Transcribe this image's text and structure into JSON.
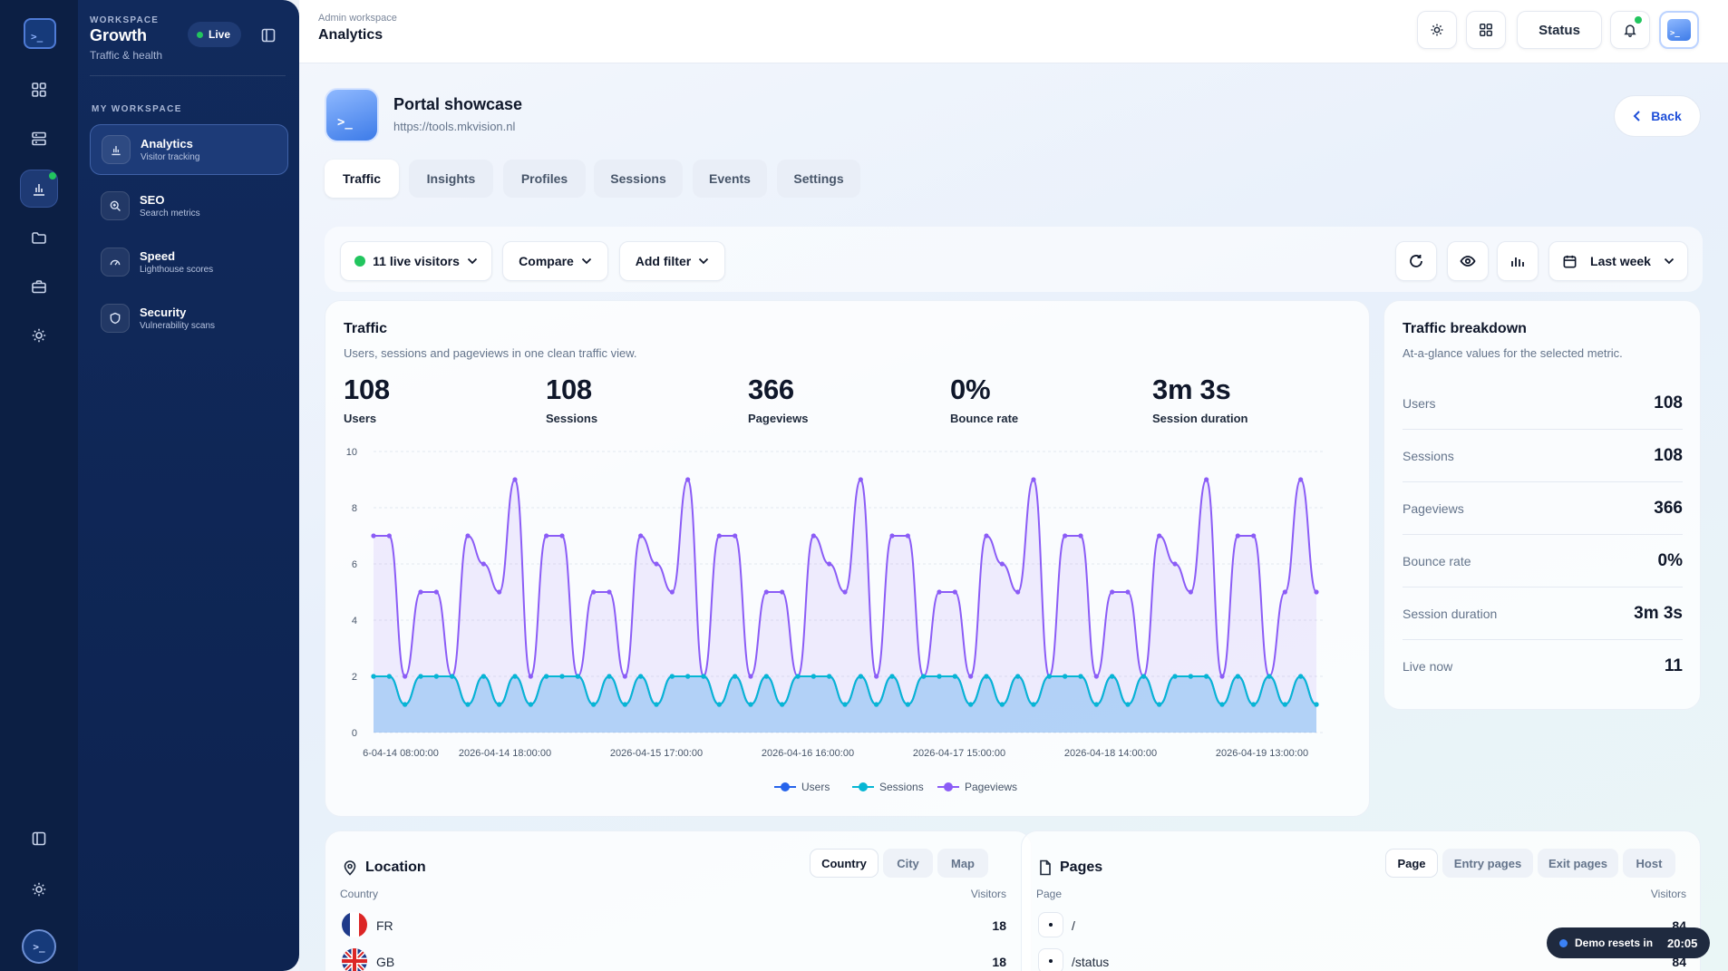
{
  "sidebar": {
    "kicker": "WORKSPACE",
    "title": "Growth",
    "subtitle": "Traffic & health",
    "live_label": "Live",
    "section_label": "MY WORKSPACE",
    "items": [
      {
        "label": "Analytics",
        "desc": "Visitor tracking",
        "icon": "chart-bar-icon",
        "active": true
      },
      {
        "label": "SEO",
        "desc": "Search metrics",
        "icon": "search-zoom-icon"
      },
      {
        "label": "Speed",
        "desc": "Lighthouse scores",
        "icon": "gauge-icon"
      },
      {
        "label": "Security",
        "desc": "Vulnerability scans",
        "icon": "shield-icon"
      }
    ]
  },
  "rail": {
    "icons": [
      "terminal-logo-icon",
      "grid-apps-icon",
      "server-icon",
      "chart-bar-icon",
      "folder-icon",
      "briefcase-icon",
      "sun-icon",
      "panel-icon",
      "settings-sun-icon",
      "avatar-terminal-icon"
    ]
  },
  "topbar": {
    "breadcrumb": "Admin workspace",
    "title": "Analytics",
    "status_label": "Status"
  },
  "project": {
    "name": "Portal showcase",
    "url": "https://tools.mkvision.nl",
    "back_label": "Back"
  },
  "tabs": [
    "Traffic",
    "Insights",
    "Profiles",
    "Sessions",
    "Events",
    "Settings"
  ],
  "filters": {
    "live_visitors": "11 live visitors",
    "compare": "Compare",
    "add_filter": "Add filter",
    "range": "Last week"
  },
  "traffic": {
    "title": "Traffic",
    "subtitle": "Users, sessions and pageviews in one clean traffic view.",
    "kpis": [
      {
        "value": "108",
        "label": "Users"
      },
      {
        "value": "108",
        "label": "Sessions"
      },
      {
        "value": "366",
        "label": "Pageviews"
      },
      {
        "value": "0%",
        "label": "Bounce rate"
      },
      {
        "value": "3m 3s",
        "label": "Session duration"
      }
    ]
  },
  "chart_data": {
    "type": "area",
    "title": "",
    "xlabel": "",
    "ylabel": "",
    "ylim": [
      0,
      10
    ],
    "yticks": [
      0,
      2,
      4,
      6,
      8,
      10
    ],
    "x_tick_labels": [
      "6-04-14 08:00:00",
      "2026-04-14 18:00:00",
      "2026-04-15 17:00:00",
      "2026-04-16 16:00:00",
      "2026-04-17 15:00:00",
      "2026-04-18 14:00:00",
      "2026-04-19 13:00:00"
    ],
    "grid": true,
    "legend_position": "bottom",
    "series": [
      {
        "name": "Users",
        "color": "#2563eb",
        "values": [
          2,
          2,
          1,
          2,
          2,
          2,
          1,
          2,
          1,
          2,
          1,
          2,
          2,
          2,
          1,
          2,
          1,
          2,
          1,
          2,
          2,
          2,
          1,
          2,
          1,
          2,
          1,
          2,
          2,
          2,
          1,
          2,
          1,
          2,
          1,
          2,
          2,
          2,
          1,
          2,
          1,
          2,
          1,
          2,
          2,
          2,
          1,
          2,
          1,
          2,
          1,
          2,
          2,
          2,
          1,
          2,
          1,
          2,
          1,
          2,
          1
        ]
      },
      {
        "name": "Sessions",
        "color": "#06b6d4",
        "values": [
          2,
          2,
          1,
          2,
          2,
          2,
          1,
          2,
          1,
          2,
          1,
          2,
          2,
          2,
          1,
          2,
          1,
          2,
          1,
          2,
          2,
          2,
          1,
          2,
          1,
          2,
          1,
          2,
          2,
          2,
          1,
          2,
          1,
          2,
          1,
          2,
          2,
          2,
          1,
          2,
          1,
          2,
          1,
          2,
          2,
          2,
          1,
          2,
          1,
          2,
          1,
          2,
          2,
          2,
          1,
          2,
          1,
          2,
          1,
          2,
          1
        ]
      },
      {
        "name": "Pageviews",
        "color": "#8b5cf6",
        "values": [
          7,
          7,
          2,
          5,
          5,
          2,
          7,
          6,
          5,
          9,
          2,
          7,
          7,
          2,
          5,
          5,
          2,
          7,
          6,
          5,
          9,
          2,
          7,
          7,
          2,
          5,
          5,
          2,
          7,
          6,
          5,
          9,
          2,
          7,
          7,
          2,
          5,
          5,
          2,
          7,
          6,
          5,
          9,
          2,
          7,
          7,
          2,
          5,
          5,
          2,
          7,
          6,
          5,
          9,
          2,
          7,
          7,
          2,
          5,
          9,
          5
        ]
      }
    ]
  },
  "breakdown": {
    "title": "Traffic breakdown",
    "subtitle": "At-a-glance values for the selected metric.",
    "rows": [
      {
        "label": "Users",
        "value": "108"
      },
      {
        "label": "Sessions",
        "value": "108"
      },
      {
        "label": "Pageviews",
        "value": "366"
      },
      {
        "label": "Bounce rate",
        "value": "0%"
      },
      {
        "label": "Session duration",
        "value": "3m 3s"
      },
      {
        "label": "Live now",
        "value": "11"
      }
    ]
  },
  "location": {
    "title": "Location",
    "segments": [
      "Country",
      "City",
      "Map"
    ],
    "col_left": "Country",
    "col_right": "Visitors",
    "rows": [
      {
        "code": "FR",
        "flag": "flag-fr-icon",
        "visitors": "18"
      },
      {
        "code": "GB",
        "flag": "flag-gb-icon",
        "visitors": "18"
      }
    ]
  },
  "pages": {
    "title": "Pages",
    "segments": [
      "Page",
      "Entry pages",
      "Exit pages",
      "Host"
    ],
    "col_left": "Page",
    "col_right": "Visitors",
    "rows": [
      {
        "path": "/",
        "visitors": "84"
      },
      {
        "path": "/status",
        "visitors": "84"
      }
    ]
  },
  "demo": {
    "label": "Demo resets in",
    "time": "20:05"
  }
}
